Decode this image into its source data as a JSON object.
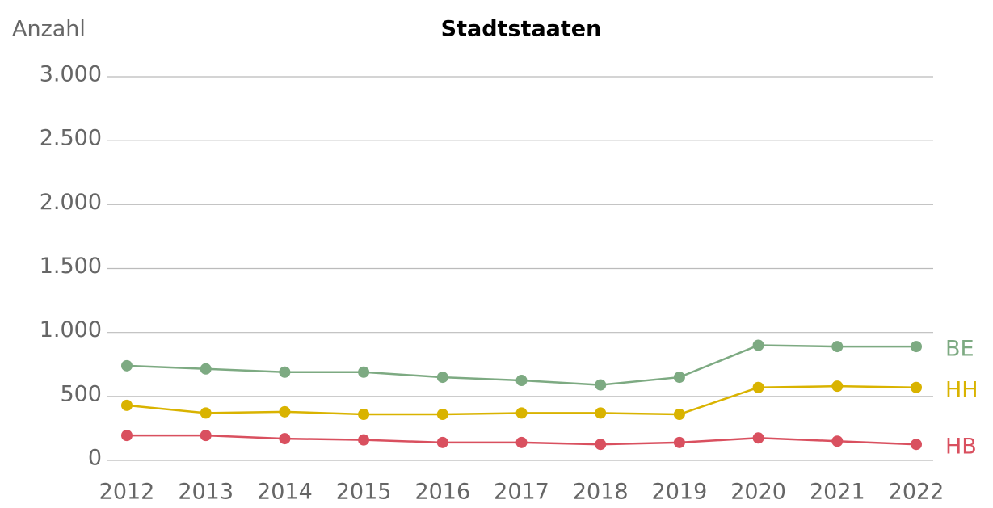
{
  "chart_data": {
    "type": "line",
    "title": "Stadtstaaten",
    "y_label": "Anzahl",
    "categories": [
      "2012",
      "2013",
      "2014",
      "2015",
      "2016",
      "2017",
      "2018",
      "2019",
      "2020",
      "2021",
      "2022"
    ],
    "series": [
      {
        "name": "BE",
        "color": "#7daa82",
        "values": [
          740,
          715,
          690,
          690,
          650,
          625,
          590,
          650,
          900,
          890,
          890
        ]
      },
      {
        "name": "HH",
        "color": "#d9b300",
        "values": [
          430,
          370,
          380,
          360,
          360,
          370,
          370,
          360,
          570,
          580,
          570
        ]
      },
      {
        "name": "HB",
        "color": "#d9505f",
        "values": [
          195,
          195,
          170,
          160,
          140,
          140,
          125,
          140,
          175,
          150,
          125
        ]
      }
    ],
    "ylim": [
      0,
      3000
    ],
    "yticks": [
      0,
      500,
      {
        "value": 1000,
        "label": "1.000"
      },
      {
        "value": 1500,
        "label": "1.500"
      },
      {
        "value": 2000,
        "label": "2.000"
      },
      {
        "value": 2500,
        "label": "2.500"
      },
      {
        "value": 3000,
        "label": "3.000"
      }
    ],
    "grid": true
  }
}
